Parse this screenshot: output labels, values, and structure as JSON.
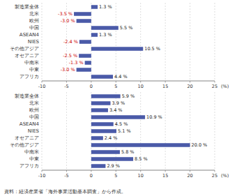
{
  "chart_data": [
    {
      "type": "bar",
      "orientation": "horizontal",
      "categories": [
        "製造業全体",
        "北米",
        "欧州",
        "中国",
        "ASEAN4",
        "NIES",
        "その他アジア",
        "オセアニア",
        "中南米",
        "中東",
        "アフリカ"
      ],
      "values": [
        1.3,
        -3.5,
        -3.0,
        5.5,
        1.3,
        -2.4,
        10.5,
        -2.5,
        -1.3,
        -3.0,
        4.4
      ],
      "value_labels": [
        "1.3 %",
        "-3.5 %",
        "-3.0 %",
        "5.5 %",
        "1.3 %",
        "-2.4 %",
        "10.5 %",
        "-2.5 %",
        "-1.3 %",
        "-3.0 %",
        "4.4 %"
      ],
      "color": "#4a5aa8",
      "xlabel": "(%)",
      "xlim": [
        -10,
        25
      ],
      "xticks": [
        -10,
        -5,
        0,
        5,
        10,
        15,
        20,
        25
      ],
      "grid": true,
      "data_labels": true
    },
    {
      "type": "bar",
      "orientation": "horizontal",
      "categories": [
        "製造業全体",
        "北米",
        "欧州",
        "中国",
        "ASEAN4",
        "NIES",
        "オセアニア",
        "その他アジア",
        "中南米",
        "中東",
        "アフリカ"
      ],
      "values": [
        5.9,
        3.9,
        3.4,
        10.9,
        4.5,
        5.1,
        2.4,
        20.0,
        5.8,
        8.5,
        2.9
      ],
      "value_labels": [
        "5.9 %",
        "3.9 %",
        "3.4 %",
        "10.9 %",
        "4.5 %",
        "5.1 %",
        "2.4 %",
        "20.0 %",
        "5.8 %",
        "8.5 %",
        "2.9 %"
      ],
      "color": "#4a5aa8",
      "xlabel": "(%)",
      "xlim": [
        -10,
        25
      ],
      "xticks": [
        -10,
        -5,
        0,
        5,
        10,
        15,
        20,
        25
      ],
      "grid": true,
      "data_labels": true,
      "annotations": [
        "資料：経済産業省「海外事業活動基本調査」から作成。"
      ]
    }
  ]
}
